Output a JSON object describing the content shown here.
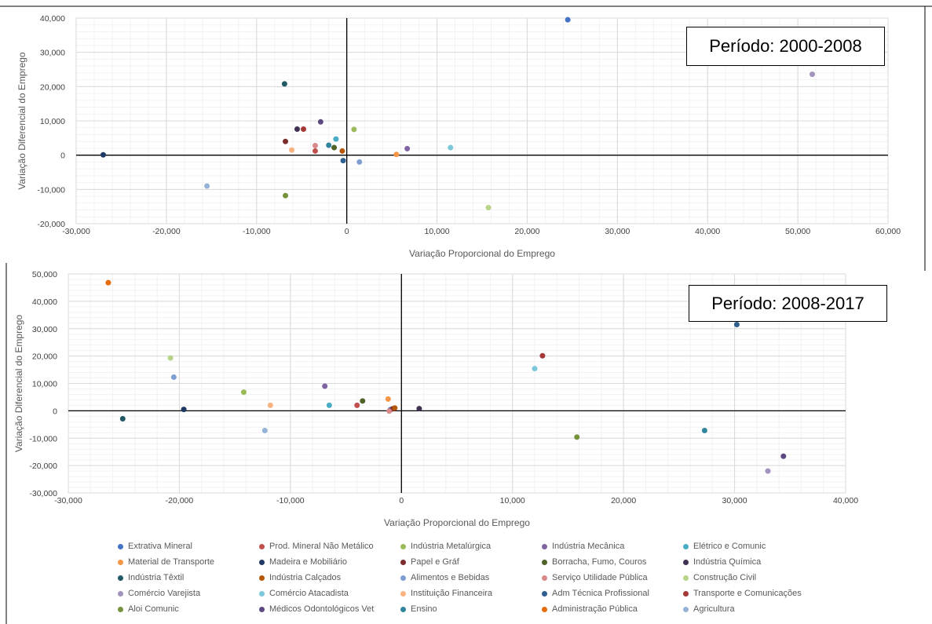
{
  "chart_data": [
    {
      "type": "scatter",
      "annotation": "Período: 2000-2008",
      "xlabel": "Variação Proporcional do Emprego",
      "ylabel": "Variação Diferencial do Emprego",
      "xlim": [
        -30000,
        60000
      ],
      "ylim": [
        -20000,
        40000
      ],
      "xticks": [
        -30000,
        -20000,
        -10000,
        0,
        10000,
        20000,
        30000,
        40000,
        50000,
        60000
      ],
      "xtick_labels": [
        "-30,000",
        "-20,000",
        "-10,000",
        "0",
        "10,000",
        "20,000",
        "30,000",
        "40,000",
        "50,000",
        "60,000"
      ],
      "yticks": [
        -20000,
        -10000,
        0,
        10000,
        20000,
        30000,
        40000
      ],
      "ytick_labels": [
        "-20,000",
        "-10,000",
        "0",
        "10,000",
        "20,000",
        "30,000",
        "40,000"
      ],
      "grid": true,
      "points": [
        {
          "series": "Extrativa Mineral",
          "x": 24500,
          "y": 39500
        },
        {
          "series": "Prod. Mineral Não Metálico",
          "x": -3500,
          "y": 1200
        },
        {
          "series": "Indústria Metalúrgica",
          "x": 800,
          "y": 7500
        },
        {
          "series": "Indústria Mecânica",
          "x": 6700,
          "y": 1900
        },
        {
          "series": "Elétrico e Comunic",
          "x": -1200,
          "y": 4700
        },
        {
          "series": "Material de Transporte",
          "x": 5500,
          "y": 200
        },
        {
          "series": "Madeira e Mobiliário",
          "x": -27000,
          "y": 100
        },
        {
          "series": "Papel e Gráf",
          "x": -6800,
          "y": 4000
        },
        {
          "series": "Borracha, Fumo, Couros",
          "x": -1400,
          "y": 2200
        },
        {
          "series": "Indústria Química",
          "x": -5500,
          "y": 7600
        },
        {
          "series": "Indústria Têxtil",
          "x": -6900,
          "y": 20800
        },
        {
          "series": "Indústria Calçados",
          "x": -500,
          "y": 1200
        },
        {
          "series": "Alimentos e Bebidas",
          "x": 1400,
          "y": -2000
        },
        {
          "series": "Serviço Utilidade Pública",
          "x": -3500,
          "y": 2800
        },
        {
          "series": "Construção Civil",
          "x": 15700,
          "y": -15300
        },
        {
          "series": "Comércio Varejista",
          "x": 51600,
          "y": 23600
        },
        {
          "series": "Comércio Atacadista",
          "x": 11500,
          "y": 2200
        },
        {
          "series": "Instituição Financeira",
          "x": -6100,
          "y": 1500
        },
        {
          "series": "Adm Técnica Profissional",
          "x": -400,
          "y": -1600
        },
        {
          "series": "Transporte e Comunicações",
          "x": -4800,
          "y": 7600
        },
        {
          "series": "Aloi Comunic",
          "x": -6800,
          "y": -11800
        },
        {
          "series": "Médicos Odontológicos Vet",
          "x": -2900,
          "y": 9700
        },
        {
          "series": "Ensino",
          "x": -2000,
          "y": 2900
        },
        {
          "series": "Agricultura",
          "x": -15500,
          "y": -9000
        }
      ]
    },
    {
      "type": "scatter",
      "annotation": "Período: 2008-2017",
      "xlabel": "Variação Proporcional do Emprego",
      "ylabel": "Variação Diferencial do Emprego",
      "xlim": [
        -30000,
        40000
      ],
      "ylim": [
        -30000,
        50000
      ],
      "xticks": [
        -30000,
        -20000,
        -10000,
        0,
        10000,
        20000,
        30000,
        40000
      ],
      "xtick_labels": [
        "-30,000",
        "-20,000",
        "-10,000",
        "0",
        "10,000",
        "20,000",
        "30,000",
        "40,000"
      ],
      "yticks": [
        -30000,
        -20000,
        -10000,
        0,
        10000,
        20000,
        30000,
        40000,
        50000
      ],
      "ytick_labels": [
        "-30,000",
        "-20,000",
        "-10,000",
        "0",
        "10,000",
        "20,000",
        "30,000",
        "40,000",
        "50,000"
      ],
      "grid": true,
      "points": [
        {
          "series": "Extrativa Mineral",
          "x": -1000,
          "y": 400
        },
        {
          "series": "Prod. Mineral Não Metálico",
          "x": -4000,
          "y": 2000
        },
        {
          "series": "Indústria Metalúrgica",
          "x": -14200,
          "y": 6800
        },
        {
          "series": "Indústria Mecânica",
          "x": -6900,
          "y": 9000
        },
        {
          "series": "Elétrico e Comunic",
          "x": -6500,
          "y": 2000
        },
        {
          "series": "Material de Transporte",
          "x": -1200,
          "y": 4300
        },
        {
          "series": "Madeira e Mobiliário",
          "x": -19600,
          "y": 500
        },
        {
          "series": "Papel e Gráf",
          "x": -800,
          "y": 700
        },
        {
          "series": "Borracha, Fumo, Couros",
          "x": -3500,
          "y": 3600
        },
        {
          "series": "Indústria Química",
          "x": 1600,
          "y": 800
        },
        {
          "series": "Indústria Têxtil",
          "x": -25100,
          "y": -2900
        },
        {
          "series": "Indústria Calçados",
          "x": -600,
          "y": 1000
        },
        {
          "series": "Alimentos e Bebidas",
          "x": -20500,
          "y": 12300
        },
        {
          "series": "Serviço Utilidade Pública",
          "x": -1100,
          "y": -100
        },
        {
          "series": "Construção Civil",
          "x": -20800,
          "y": 19300
        },
        {
          "series": "Comércio Varejista",
          "x": 33000,
          "y": -22000
        },
        {
          "series": "Comércio Atacadista",
          "x": 12000,
          "y": 15400
        },
        {
          "series": "Instituição Financeira",
          "x": -11800,
          "y": 2000
        },
        {
          "series": "Adm Técnica Profissional",
          "x": 30200,
          "y": 31500
        },
        {
          "series": "Transporte e Comunicações",
          "x": 12700,
          "y": 20100
        },
        {
          "series": "Aloi Comunic",
          "x": 15800,
          "y": -9600
        },
        {
          "series": "Médicos Odontológicos Vet",
          "x": 34400,
          "y": -16600
        },
        {
          "series": "Ensino",
          "x": 27300,
          "y": -7200
        },
        {
          "series": "Administração Pública",
          "x": -26400,
          "y": 46800
        },
        {
          "series": "Agricultura",
          "x": -12300,
          "y": -7200
        }
      ]
    }
  ],
  "legend": {
    "placement": "bottom",
    "entries": [
      {
        "name": "Extrativa Mineral",
        "color": "#4472C4"
      },
      {
        "name": "Prod. Mineral Não Metálico",
        "color": "#C0504D"
      },
      {
        "name": "Indústria Metalúrgica",
        "color": "#9BBB59"
      },
      {
        "name": "Indústria Mecânica",
        "color": "#8064A2"
      },
      {
        "name": "Elétrico e Comunic",
        "color": "#4BACC6"
      },
      {
        "name": "Material de Transporte",
        "color": "#F79646"
      },
      {
        "name": "Madeira e Mobiliário",
        "color": "#1F3864"
      },
      {
        "name": "Papel e Gráf",
        "color": "#7B2C2C"
      },
      {
        "name": "Borracha, Fumo, Couros",
        "color": "#4F6228"
      },
      {
        "name": "Indústria Química",
        "color": "#403152"
      },
      {
        "name": "Indústria Têxtil",
        "color": "#215967"
      },
      {
        "name": "Indústria Calçados",
        "color": "#B65708"
      },
      {
        "name": "Alimentos e Bebidas",
        "color": "#7F9FD3"
      },
      {
        "name": "Serviço Utilidade Pública",
        "color": "#D98A88"
      },
      {
        "name": "Construção Civil",
        "color": "#B8D488"
      },
      {
        "name": "Comércio Varejista",
        "color": "#A193BD"
      },
      {
        "name": "Comércio Atacadista",
        "color": "#7CC8DB"
      },
      {
        "name": "Instituição Financeira",
        "color": "#F9B382"
      },
      {
        "name": "Adm Técnica Profissional",
        "color": "#2E5F8E"
      },
      {
        "name": "Transporte e Comunicações",
        "color": "#A33836"
      },
      {
        "name": "Aloi Comunic",
        "color": "#75923C"
      },
      {
        "name": "Médicos Odontológicos Vet",
        "color": "#5E4880"
      },
      {
        "name": "Ensino",
        "color": "#31859C"
      },
      {
        "name": "Administração Pública",
        "color": "#E46C0A"
      },
      {
        "name": "Agricultura",
        "color": "#95B3D7"
      }
    ]
  }
}
